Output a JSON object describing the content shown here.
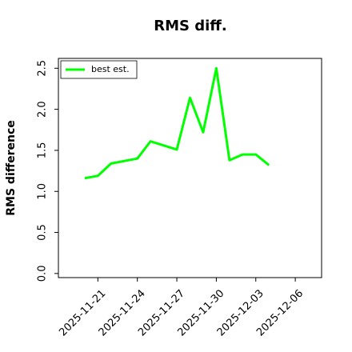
{
  "chart_data": {
    "type": "line",
    "title": "RMS diff.",
    "ylabel": "RMS difference",
    "x": [
      "2025-11-20",
      "2025-11-21",
      "2025-11-22",
      "2025-11-24",
      "2025-11-25",
      "2025-11-27",
      "2025-11-28",
      "2025-11-29",
      "2025-11-30",
      "2025-12-01",
      "2025-12-02",
      "2025-12-03",
      "2025-12-04"
    ],
    "series": [
      {
        "name": "best est.",
        "color": "#00ff00",
        "values": [
          1.16,
          1.19,
          1.34,
          1.4,
          1.61,
          1.51,
          2.14,
          1.72,
          2.5,
          1.38,
          1.45,
          1.45,
          1.32
        ]
      }
    ],
    "xlim": [
      "2025-11-18",
      "2025-12-08"
    ],
    "xticks": [
      "2025-11-21",
      "2025-11-24",
      "2025-11-27",
      "2025-11-30",
      "2025-12-03",
      "2025-12-06"
    ],
    "ylim": [
      -0.05,
      2.62
    ],
    "yticks": [
      {
        "value": 0,
        "label": "0.0"
      },
      0.5,
      {
        "value": 1,
        "label": "1.0"
      },
      1.5,
      {
        "value": 2,
        "label": "2.0"
      },
      2.5
    ],
    "legend": "upper left"
  }
}
